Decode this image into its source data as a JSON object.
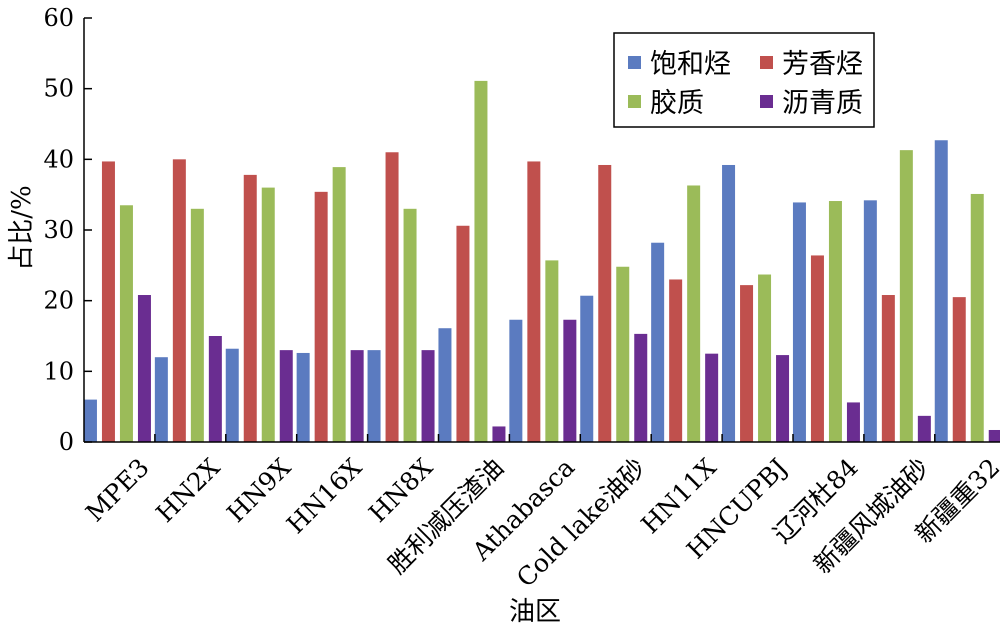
{
  "chart_data": {
    "type": "bar",
    "title": "",
    "xlabel": "油区",
    "ylabel": "占比/%",
    "ylim": [
      0,
      60
    ],
    "yticks": [
      0,
      10,
      20,
      30,
      40,
      50,
      60
    ],
    "grid": false,
    "legend_position": "top-right",
    "categories": [
      "MPE3",
      "HN2X",
      "HN9X",
      "HN16X",
      "HN8X",
      "胜利减压渣油",
      "Athabasca",
      "Cold lake油砂",
      "HN11X",
      "HNCUPBJ",
      "辽河杜84",
      "新疆风城油砂",
      "新疆重32"
    ],
    "series": [
      {
        "name": "饱和烃",
        "color": "#5b7bc0",
        "values": [
          6.0,
          12.0,
          13.2,
          12.6,
          13.0,
          16.1,
          17.3,
          20.7,
          28.2,
          39.2,
          33.9,
          34.2,
          42.7
        ]
      },
      {
        "name": "芳香烃",
        "color": "#c0504d",
        "values": [
          39.7,
          40.0,
          37.8,
          35.4,
          41.0,
          30.6,
          39.7,
          39.2,
          23.0,
          22.2,
          26.4,
          20.8,
          20.5
        ]
      },
      {
        "name": "胶质",
        "color": "#9bbb59",
        "values": [
          33.5,
          33.0,
          36.0,
          38.9,
          33.0,
          51.1,
          25.7,
          24.8,
          36.3,
          23.7,
          34.1,
          41.3,
          35.1
        ]
      },
      {
        "name": "沥青质",
        "color": "#6a2d91",
        "values": [
          20.8,
          15.0,
          13.0,
          13.0,
          13.0,
          2.2,
          17.3,
          15.3,
          12.5,
          12.3,
          5.6,
          3.7,
          1.7
        ]
      }
    ]
  }
}
